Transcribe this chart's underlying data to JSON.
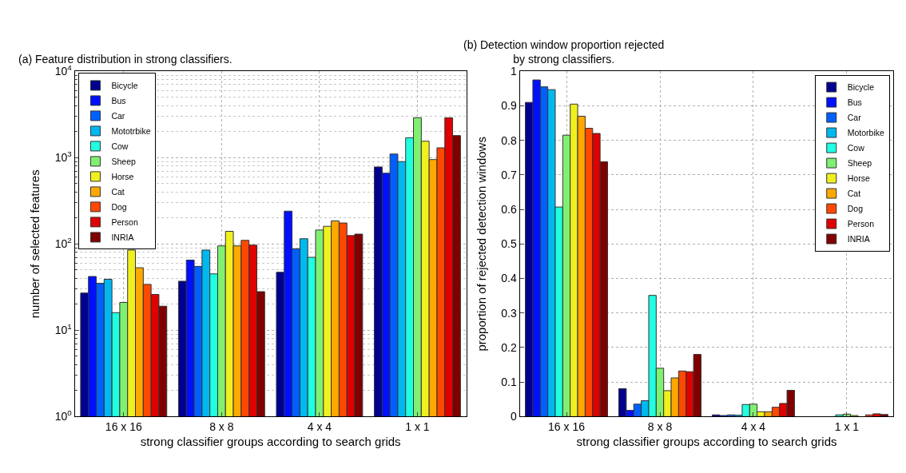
{
  "chart_data": [
    {
      "type": "bar",
      "title": "(a) Feature distribution in strong classifiers.",
      "xlabel": "strong classifier groups according to search grids",
      "ylabel": "number of selected features",
      "categories": [
        "16 x 16",
        "8 x 8",
        "4 x 4",
        "1 x 1"
      ],
      "log": true,
      "ylim": [
        1,
        10000
      ],
      "yticks": [
        {
          "value": 1,
          "label": "10$^{0}$"
        },
        {
          "value": 10,
          "label": "10$^{1}$"
        },
        {
          "value": 100,
          "label": "10$^{2}$"
        },
        {
          "value": 1000,
          "label": "10$^{3}$"
        },
        {
          "value": 10000,
          "label": "10$^{4}$"
        }
      ],
      "grid": true,
      "legend": "top left",
      "series": [
        {
          "name": "Bicycle",
          "color": "#000090",
          "values": [
            27,
            37,
            47,
            780
          ]
        },
        {
          "name": "Bus",
          "color": "#0010ff",
          "values": [
            42,
            65,
            240,
            660
          ]
        },
        {
          "name": "Car",
          "color": "#0060ff",
          "values": [
            35,
            55,
            88,
            1100
          ]
        },
        {
          "name": "Mototrbike",
          "color": "#00b8f0",
          "values": [
            39,
            85,
            115,
            900
          ]
        },
        {
          "name": "Cow",
          "color": "#20ffe0",
          "values": [
            16,
            45,
            70,
            1700
          ]
        },
        {
          "name": "Sheep",
          "color": "#80f070",
          "values": [
            21,
            95,
            145,
            2900
          ]
        },
        {
          "name": "Horse",
          "color": "#f0f020",
          "values": [
            85,
            140,
            160,
            1550
          ]
        },
        {
          "name": "Cat",
          "color": "#ffa800",
          "values": [
            53,
            95,
            185,
            950
          ]
        },
        {
          "name": "Dog",
          "color": "#ff4800",
          "values": [
            34,
            110,
            175,
            1300
          ]
        },
        {
          "name": "Person",
          "color": "#e00000",
          "values": [
            26,
            97,
            125,
            2900
          ]
        },
        {
          "name": "INRIA",
          "color": "#800000",
          "values": [
            19,
            28,
            130,
            1800
          ]
        }
      ]
    },
    {
      "type": "bar",
      "title": "(b) Detection window proportion rejected\nby strong classifiers.",
      "xlabel": "strong classifier groups according to search grids",
      "ylabel": "proportion of rejected detection windows",
      "categories": [
        "16 x 16",
        "8 x 8",
        "4 x 4",
        "1 x 1"
      ],
      "ylim": [
        0,
        1
      ],
      "yticks": [
        0,
        0.1,
        0.2,
        0.3,
        0.4,
        0.5,
        0.6,
        0.7,
        0.8,
        0.9,
        1
      ],
      "grid": true,
      "legend": "top right",
      "series": [
        {
          "name": "Bicycle",
          "color": "#000090",
          "values": [
            0.91,
            0.081,
            0.005,
            0
          ]
        },
        {
          "name": "Bus",
          "color": "#0010ff",
          "values": [
            0.975,
            0.018,
            0.003,
            0
          ]
        },
        {
          "name": "Car",
          "color": "#0060ff",
          "values": [
            0.955,
            0.036,
            0.005,
            0
          ]
        },
        {
          "name": "Motorbike",
          "color": "#00b8f0",
          "values": [
            0.947,
            0.046,
            0.004,
            0
          ]
        },
        {
          "name": "Cow",
          "color": "#20ffe0",
          "values": [
            0.607,
            0.351,
            0.035,
            0.005
          ]
        },
        {
          "name": "Sheep",
          "color": "#80f070",
          "values": [
            0.815,
            0.14,
            0.036,
            0.007
          ]
        },
        {
          "name": "Horse",
          "color": "#f0f020",
          "values": [
            0.905,
            0.075,
            0.014,
            0.003
          ]
        },
        {
          "name": "Cat",
          "color": "#ffa800",
          "values": [
            0.87,
            0.112,
            0.014,
            0
          ]
        },
        {
          "name": "Dog",
          "color": "#ff4800",
          "values": [
            0.835,
            0.132,
            0.027,
            0.005
          ]
        },
        {
          "name": "Person",
          "color": "#e00000",
          "values": [
            0.82,
            0.13,
            0.038,
            0.008
          ]
        },
        {
          "name": "INRIA",
          "color": "#800000",
          "values": [
            0.738,
            0.18,
            0.076,
            0.006
          ]
        }
      ]
    }
  ]
}
